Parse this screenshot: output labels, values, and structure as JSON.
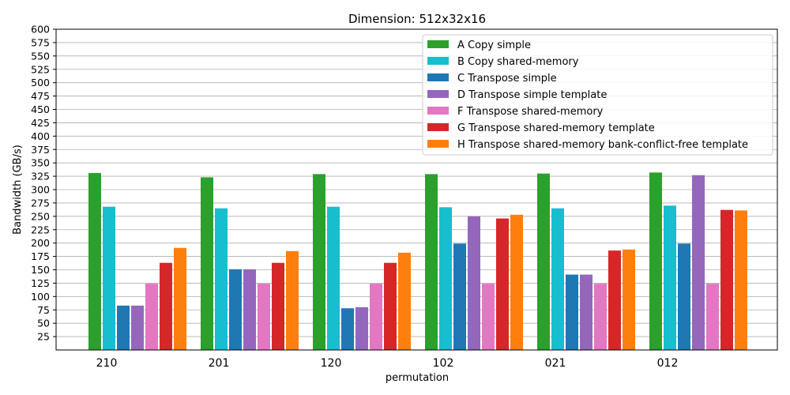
{
  "chart_data": {
    "type": "bar",
    "title": "Dimension: 512x32x16",
    "xlabel": "permutation",
    "ylabel": "Bandwidth (GB/s)",
    "ylim": [
      0,
      600
    ],
    "yticks": [
      25,
      50,
      75,
      100,
      125,
      150,
      175,
      200,
      225,
      250,
      275,
      300,
      325,
      350,
      375,
      400,
      425,
      450,
      475,
      500,
      525,
      550,
      575,
      600
    ],
    "grid": "horizontal",
    "legend_position": "top-right",
    "categories": [
      "210",
      "201",
      "120",
      "102",
      "021",
      "012"
    ],
    "series": [
      {
        "name": "A Copy simple",
        "color": "#2ca02c",
        "values": [
          331,
          323,
          329,
          329,
          330,
          332
        ]
      },
      {
        "name": "B Copy shared-memory",
        "color": "#17becf",
        "values": [
          268,
          265,
          268,
          267,
          265,
          270
        ]
      },
      {
        "name": "C Transpose simple",
        "color": "#1f77b4",
        "values": [
          83,
          151,
          78,
          199,
          141,
          199
        ]
      },
      {
        "name": "D Transpose simple template",
        "color": "#9467bd",
        "values": [
          83,
          151,
          80,
          250,
          141,
          327
        ]
      },
      {
        "name": "F Transpose shared-memory",
        "color": "#e377c2",
        "values": [
          124,
          124,
          124,
          124,
          124,
          124
        ]
      },
      {
        "name": "G Transpose shared-memory template",
        "color": "#d62728",
        "values": [
          163,
          163,
          163,
          246,
          186,
          262
        ]
      },
      {
        "name": "H Transpose shared-memory bank-conflict-free template",
        "color": "#ff7f0e",
        "values": [
          191,
          185,
          182,
          253,
          188,
          261
        ]
      }
    ]
  }
}
